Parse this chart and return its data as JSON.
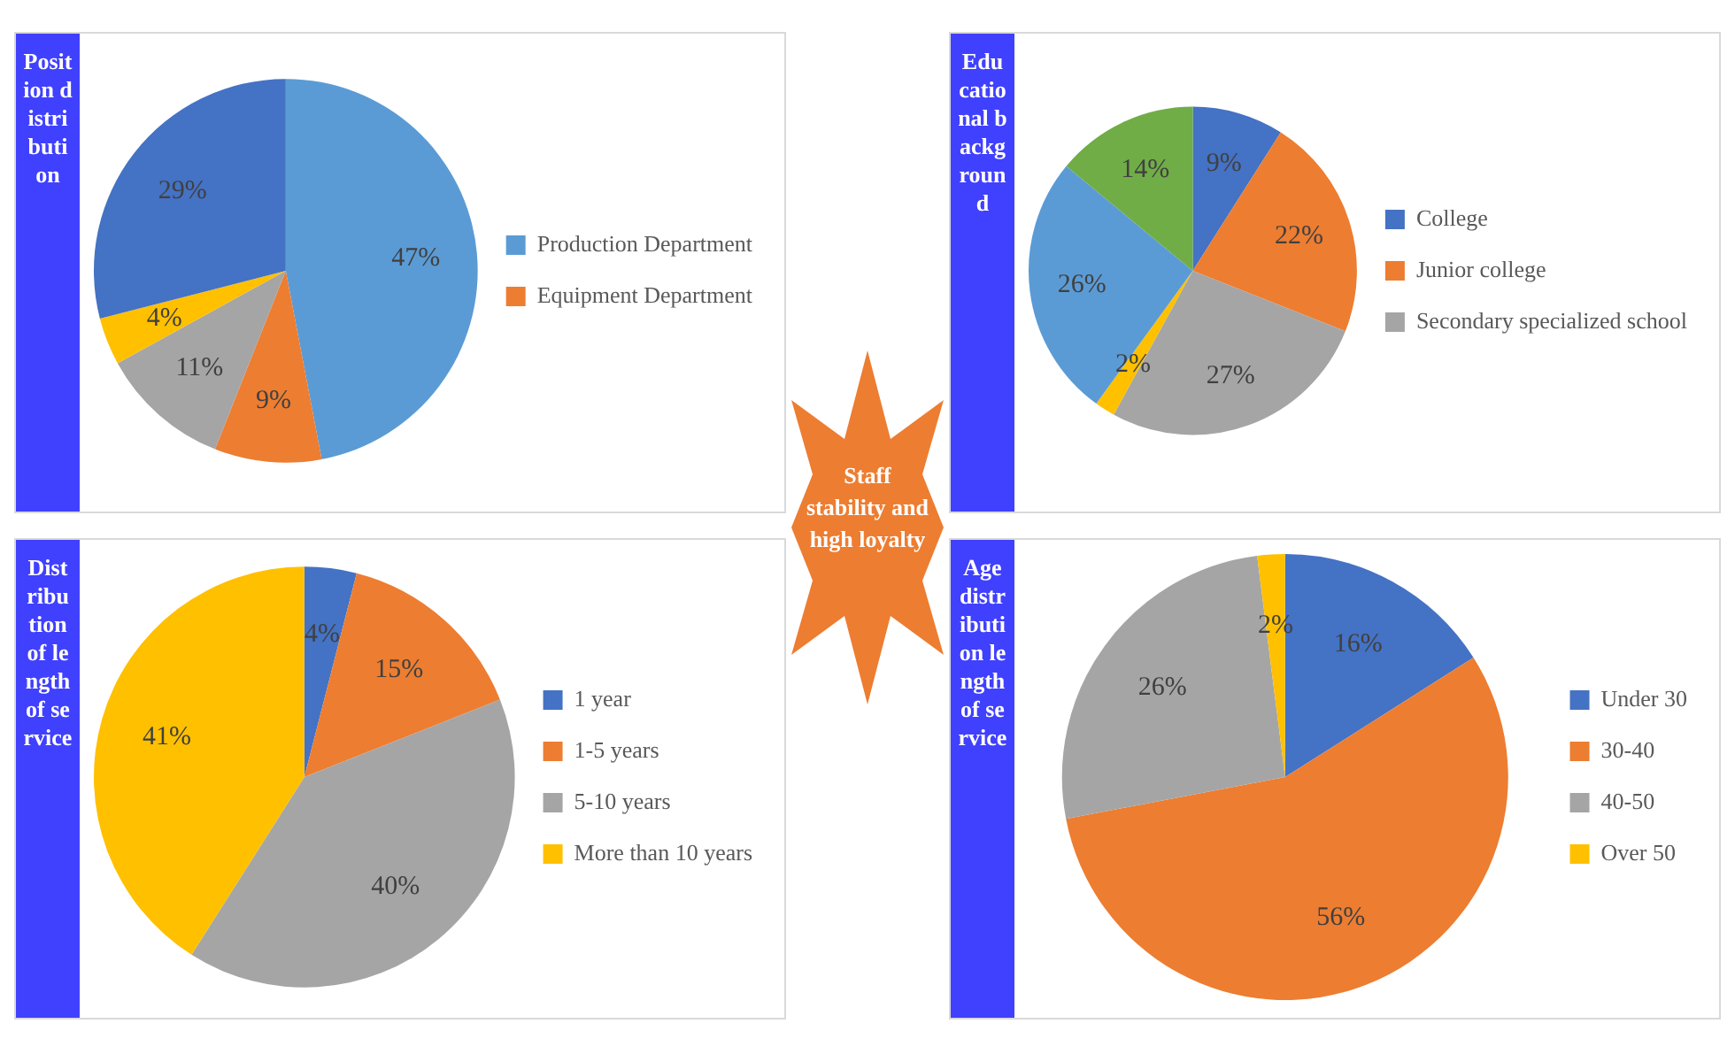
{
  "chart_data": [
    {
      "type": "pie",
      "title": "Position distribution",
      "categories": [
        "Production Department",
        "Equipment Department",
        null,
        null,
        null
      ],
      "values": [
        47,
        9,
        11,
        4,
        29
      ],
      "colors": [
        "#5b9bd5",
        "#ed7d31",
        "#a5a5a5",
        "#ffc000",
        "#4472c4"
      ],
      "value_labels": [
        "47%",
        "9%",
        "11%",
        "4%",
        "29%"
      ],
      "legend": "right",
      "annotations": [
        "Staff stability and high loyalty"
      ]
    },
    {
      "type": "pie",
      "title": "Educational background",
      "categories": [
        "College",
        "Junior college",
        "Secondary specialized school",
        null,
        null,
        null
      ],
      "values": [
        9,
        22,
        27,
        2,
        26,
        14
      ],
      "colors": [
        "#4472c4",
        "#ed7d31",
        "#a5a5a5",
        "#ffc000",
        "#5b9bd5",
        "#70ad47"
      ],
      "value_labels": [
        "9%",
        "22%",
        "27%",
        "2%",
        "26%",
        "14%"
      ],
      "legend": "right"
    },
    {
      "type": "pie",
      "title": "Distribution of length of service",
      "categories": [
        "1 year",
        "1-5 years",
        "5-10 years",
        "More than 10 years"
      ],
      "values": [
        4,
        15,
        40,
        41
      ],
      "colors": [
        "#4472c4",
        "#ed7d31",
        "#a5a5a5",
        "#ffc000"
      ],
      "value_labels": [
        "4%",
        "15%",
        "40%",
        "41%"
      ],
      "legend": "right"
    },
    {
      "type": "pie",
      "title": "Age distribution length of service",
      "categories": [
        "Under 30",
        "30-40",
        "40-50",
        "Over 50"
      ],
      "values": [
        16,
        56,
        26,
        2
      ],
      "colors": [
        "#4472c4",
        "#ed7d31",
        "#a5a5a5",
        "#ffc000"
      ],
      "value_labels": [
        "16%",
        "56%",
        "26%",
        "2%"
      ],
      "legend": "right"
    }
  ]
}
